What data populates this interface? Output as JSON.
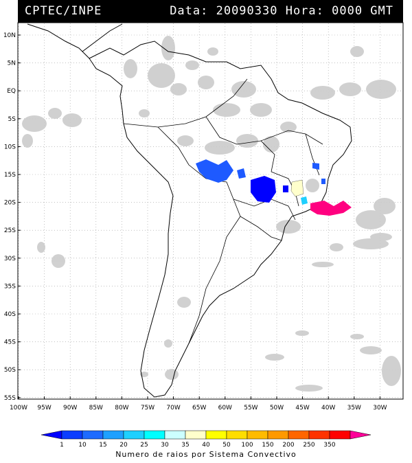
{
  "header": {
    "source": "CPTEC/INPE",
    "datetime": "Data: 20090330 Hora: 0000 GMT"
  },
  "axes": {
    "lat_labels": [
      "10N",
      "5N",
      "EQ",
      "5S",
      "10S",
      "15S",
      "20S",
      "25S",
      "30S",
      "35S",
      "40S",
      "45S",
      "50S",
      "55S"
    ],
    "lon_labels": [
      "100W",
      "95W",
      "90W",
      "85W",
      "80W",
      "75W",
      "70W",
      "65W",
      "60W",
      "55W",
      "50W",
      "45W",
      "40W",
      "35W",
      "30W"
    ]
  },
  "colorbar": {
    "title": "Numero de raios por Sistema Convectivo",
    "ticks": [
      "1",
      "10",
      "15",
      "20",
      "25",
      "30",
      "35",
      "40",
      "50",
      "100",
      "150",
      "200",
      "250",
      "350"
    ],
    "colors": [
      "#0000ff",
      "#0b3dff",
      "#1e6bff",
      "#1ea0ff",
      "#1ed0ff",
      "#00ffff",
      "#ccffff",
      "#ffffcc",
      "#ffff00",
      "#ffdd00",
      "#ffbb00",
      "#ff9900",
      "#ff6600",
      "#ff3300",
      "#ff0000",
      "#ff0099"
    ]
  },
  "systems": [
    {
      "color": "#1e5aff",
      "count_class": "10-15"
    },
    {
      "color": "#0000ff",
      "count_class": "1-10"
    },
    {
      "color": "#ff0080",
      "count_class": "350+"
    },
    {
      "color": "#ffffcc",
      "count_class": "30-35"
    },
    {
      "color": "#1ed0ff",
      "count_class": "20-25"
    }
  ],
  "colors": {
    "cloud": "#c8c8c8",
    "grid": "#9a9a9a",
    "coast": "#000000",
    "header_bg": "#000000"
  }
}
